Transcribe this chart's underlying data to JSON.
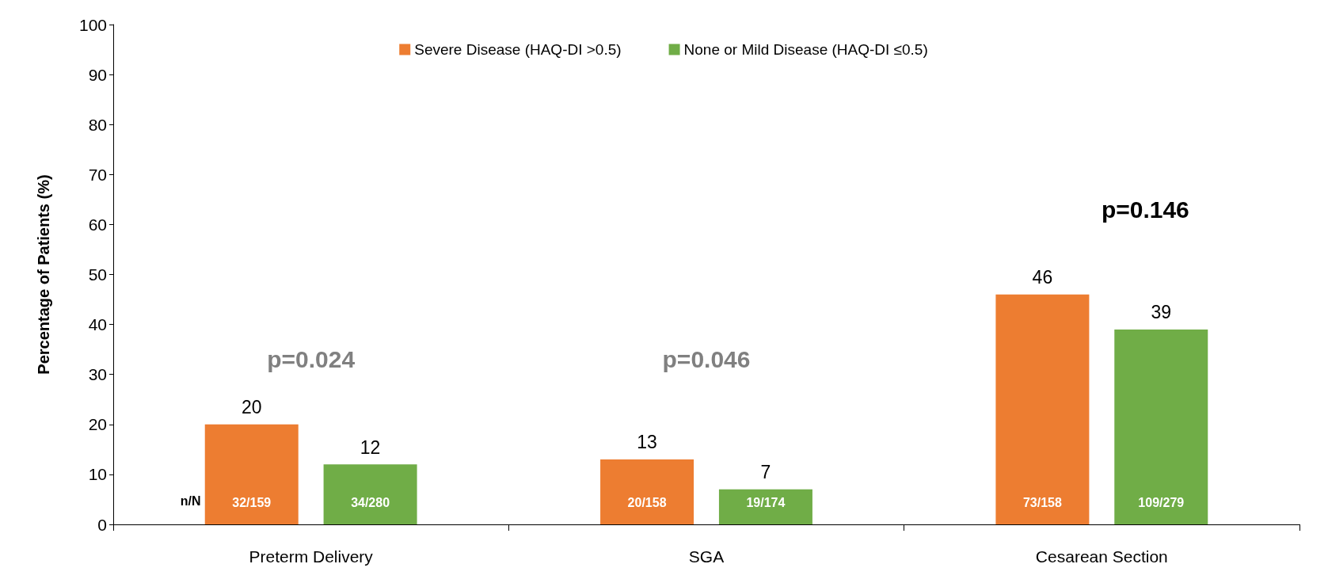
{
  "chart_data": {
    "type": "bar",
    "ylabel": "Percentage of Patients (%)",
    "categories": [
      "Preterm Delivery",
      "SGA",
      "Cesarean Section"
    ],
    "series": [
      {
        "name": "Severe Disease (HAQ-DI >0.5)",
        "color": "#ed7d31",
        "values": [
          20,
          13,
          46
        ]
      },
      {
        "name": "None or Mild Disease (HAQ-DI ≤0.5)",
        "color": "#70ad47",
        "values": [
          12,
          7,
          39
        ]
      }
    ],
    "ylim": [
      0,
      100
    ],
    "yticks": [
      0,
      10,
      20,
      30,
      40,
      50,
      60,
      70,
      80,
      90,
      100
    ],
    "data_labels": true,
    "grid": false,
    "legend": "top",
    "annotations": [
      "n/N",
      "32/159",
      "34/280",
      "20/158",
      "19/174",
      "73/158",
      "109/279",
      "p=0.024",
      "p=0.046",
      "p=0.146"
    ]
  }
}
